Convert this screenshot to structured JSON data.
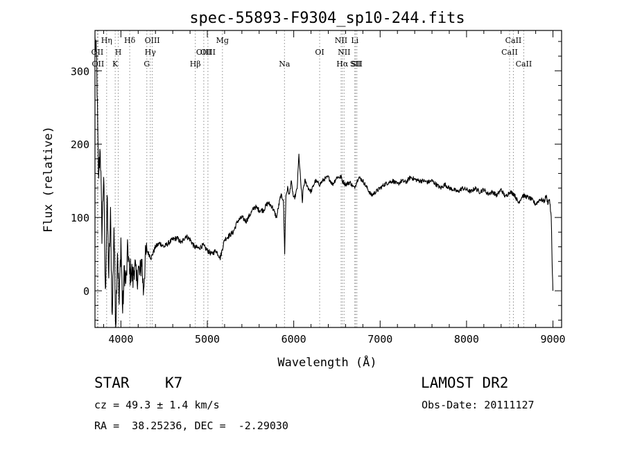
{
  "chart_data": {
    "type": "line",
    "title": "spec-55893-F9304_sp10-244.fits",
    "xlabel": "Wavelength (Å)",
    "ylabel": "Flux (relative)",
    "xlim": [
      3700,
      9100
    ],
    "ylim": [
      -50,
      355
    ],
    "xticks": [
      4000,
      5000,
      6000,
      7000,
      8000,
      9000
    ],
    "yticks": [
      0,
      100,
      200,
      300
    ],
    "grid": false,
    "legend": "none",
    "line_color": "#000000",
    "marker_line_color": "#888888",
    "spectrum": {
      "x": [
        3700,
        3720,
        3740,
        3760,
        3780,
        3800,
        3820,
        3840,
        3860,
        3880,
        3900,
        3920,
        3940,
        3960,
        3980,
        4000,
        4020,
        4040,
        4060,
        4080,
        4100,
        4120,
        4140,
        4160,
        4180,
        4200,
        4220,
        4240,
        4260,
        4280,
        4300,
        4350,
        4400,
        4450,
        4500,
        4550,
        4600,
        4650,
        4700,
        4750,
        4800,
        4850,
        4900,
        4950,
        5000,
        5050,
        5100,
        5150,
        5200,
        5250,
        5300,
        5350,
        5400,
        5450,
        5500,
        5550,
        5600,
        5650,
        5700,
        5750,
        5800,
        5850,
        5880,
        5895,
        5910,
        5930,
        5950,
        5970,
        6000,
        6020,
        6040,
        6060,
        6080,
        6090,
        6100,
        6110,
        6130,
        6150,
        6170,
        6200,
        6250,
        6300,
        6350,
        6400,
        6450,
        6500,
        6550,
        6563,
        6600,
        6650,
        6700,
        6750,
        6800,
        6850,
        6900,
        6950,
        7000,
        7050,
        7100,
        7150,
        7200,
        7250,
        7300,
        7350,
        7400,
        7450,
        7500,
        7550,
        7600,
        7650,
        7700,
        7750,
        7800,
        7850,
        7900,
        7950,
        8000,
        8050,
        8100,
        8150,
        8200,
        8250,
        8300,
        8350,
        8400,
        8450,
        8500,
        8550,
        8600,
        8650,
        8700,
        8750,
        8800,
        8850,
        8900,
        8920,
        8940,
        8960,
        8980,
        8990,
        9000
      ],
      "y": [
        340,
        310,
        150,
        200,
        80,
        160,
        -10,
        130,
        20,
        100,
        -40,
        90,
        -50,
        60,
        -20,
        70,
        -30,
        30,
        10,
        60,
        20,
        30,
        15,
        40,
        10,
        30,
        20,
        45,
        0,
        40,
        55,
        45,
        60,
        65,
        60,
        65,
        70,
        72,
        65,
        75,
        70,
        60,
        58,
        62,
        55,
        50,
        55,
        45,
        70,
        75,
        80,
        95,
        100,
        95,
        105,
        115,
        110,
        110,
        120,
        115,
        100,
        130,
        125,
        52,
        130,
        140,
        130,
        150,
        125,
        130,
        140,
        185,
        150,
        135,
        120,
        140,
        150,
        145,
        140,
        135,
        150,
        145,
        152,
        155,
        145,
        155,
        155,
        150,
        145,
        148,
        140,
        155,
        150,
        140,
        130,
        135,
        140,
        145,
        148,
        150,
        145,
        150,
        148,
        155,
        152,
        150,
        150,
        148,
        150,
        145,
        140,
        145,
        140,
        138,
        135,
        140,
        138,
        135,
        140,
        135,
        138,
        132,
        135,
        130,
        138,
        128,
        135,
        132,
        120,
        130,
        128,
        125,
        118,
        125,
        122,
        130,
        120,
        125,
        100,
        40,
        0
      ]
    },
    "lines": [
      {
        "wave": 3727,
        "label": "OII",
        "row": 2
      },
      {
        "wave": 3735,
        "label": "OII",
        "row": 3
      },
      {
        "wave": 3835,
        "label": "Hη",
        "row": 1
      },
      {
        "wave": 3934,
        "label": "K",
        "row": 3
      },
      {
        "wave": 3969,
        "label": "H",
        "row": 2
      },
      {
        "wave": 4102,
        "label": "Hδ",
        "row": 1
      },
      {
        "wave": 4300,
        "label": "G",
        "row": 3
      },
      {
        "wave": 4340,
        "label": "Hγ",
        "row": 2
      },
      {
        "wave": 4363,
        "label": "OIII",
        "row": 1
      },
      {
        "wave": 4861,
        "label": "Hβ",
        "row": 3
      },
      {
        "wave": 4959,
        "label": "OIII",
        "row": 2
      },
      {
        "wave": 5007,
        "label": "OIII",
        "row": 2
      },
      {
        "wave": 5175,
        "label": "Mg",
        "row": 1
      },
      {
        "wave": 5893,
        "label": "Na",
        "row": 3
      },
      {
        "wave": 6300,
        "label": "OI",
        "row": 2
      },
      {
        "wave": 6548,
        "label": "NII",
        "row": 1
      },
      {
        "wave": 6563,
        "label": "Hα",
        "row": 3
      },
      {
        "wave": 6583,
        "label": "NII",
        "row": 2
      },
      {
        "wave": 6707,
        "label": "Li",
        "row": 1
      },
      {
        "wave": 6716,
        "label": "SII",
        "row": 3
      },
      {
        "wave": 6731,
        "label": "SII",
        "row": 3
      },
      {
        "wave": 8498,
        "label": "CaII",
        "row": 2
      },
      {
        "wave": 8542,
        "label": "CaII",
        "row": 1
      },
      {
        "wave": 8662,
        "label": "CaII",
        "row": 3
      }
    ]
  },
  "info": {
    "obj_class": "STAR",
    "subclass": "K7",
    "survey": "LAMOST DR2",
    "cz": "cz = 49.3 ± 1.4 km/s",
    "obsdate": "Obs-Date: 20111127",
    "radec": "RA =  38.25236, DEC =  -2.29030"
  }
}
